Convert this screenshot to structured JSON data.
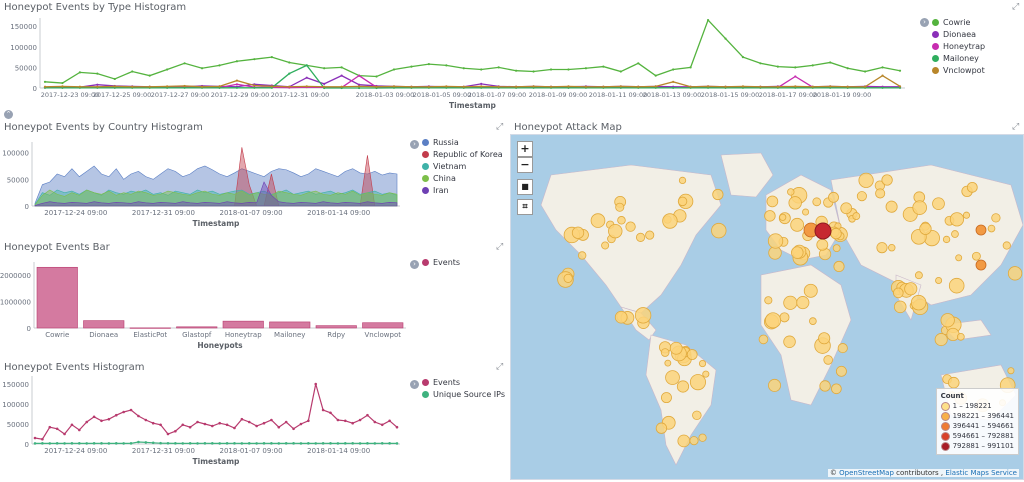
{
  "panels": {
    "type_histogram": {
      "title": "Honeypot Events by Type Histogram",
      "xlabel": "Timestamp",
      "yticks": [
        "150000",
        "100000",
        "50000",
        "0"
      ],
      "xticks": [
        "2017-12-23 09:00",
        "2017-12-25 09:00",
        "2017-12-27 09:00",
        "2017-12-29 09:00",
        "2017-12-31 09:00",
        "2018-01-03 09:00",
        "2018-01-05 09:00",
        "2018-01-07 09:00",
        "2018-01-09 09:00",
        "2018-01-11 09:00",
        "2018-01-13 09:00",
        "2018-01-15 09:00",
        "2018-01-17 09:00",
        "2018-01-19 09:00"
      ],
      "legend": [
        {
          "name": "Cowrie",
          "color": "#54b33e"
        },
        {
          "name": "Dionaea",
          "color": "#8a2fb8"
        },
        {
          "name": "Honeytrap",
          "color": "#c72cb0"
        },
        {
          "name": "Mailoney",
          "color": "#2fae5e"
        },
        {
          "name": "Vnclowpot",
          "color": "#b8862a"
        }
      ]
    },
    "country_histogram": {
      "title": "Honeypot Events by Country Histogram",
      "xlabel": "Timestamp",
      "yticks": [
        "100000",
        "50000",
        "0"
      ],
      "xticks": [
        "2017-12-24 09:00",
        "2017-12-31 09:00",
        "2018-01-07 09:00",
        "2018-01-14 09:00"
      ],
      "legend": [
        {
          "name": "Russia",
          "color": "#5b7fc4"
        },
        {
          "name": "Republic of Korea",
          "color": "#c23c4b"
        },
        {
          "name": "Vietnam",
          "color": "#3fb2a8"
        },
        {
          "name": "China",
          "color": "#7dbf4a"
        },
        {
          "name": "Iran",
          "color": "#6e40b3"
        }
      ]
    },
    "events_bar": {
      "title": "Honeypot Events Bar",
      "xlabel": "Honeypots",
      "yticks": [
        "2000000",
        "1000000",
        "0"
      ],
      "legend": [
        {
          "name": "Events",
          "color": "#b83b6e"
        }
      ]
    },
    "events_histogram": {
      "title": "Honeypot Events Histogram",
      "xlabel": "Timestamp",
      "yticks": [
        "150000",
        "100000",
        "50000",
        "0"
      ],
      "xticks": [
        "2017-12-24 09:00",
        "2017-12-31 09:00",
        "2018-01-07 09:00",
        "2018-01-14 09:00"
      ],
      "legend": [
        {
          "name": "Events",
          "color": "#b83b6e"
        },
        {
          "name": "Unique Source IPs",
          "color": "#3fb27f"
        }
      ]
    },
    "attack_map": {
      "title": "Honeypot Attack Map",
      "zoom_in": "+",
      "zoom_out": "−",
      "legend_title": "Count",
      "legend": [
        {
          "label": "1 – 198221",
          "color": "#fde08a"
        },
        {
          "label": "198221 – 396441",
          "color": "#f7b04a"
        },
        {
          "label": "396441 – 594661",
          "color": "#ee7b34"
        },
        {
          "label": "594661 – 792881",
          "color": "#d8412a"
        },
        {
          "label": "792881 – 991101",
          "color": "#a81c26"
        }
      ],
      "attribution_prefix": "©",
      "attribution_link1": "OpenStreetMap",
      "attribution_mid": "contributors ,",
      "attribution_link2": "Elastic Maps Service"
    }
  },
  "chart_data": [
    {
      "type": "line",
      "title": "Honeypot Events by Type Histogram",
      "xlabel": "Timestamp",
      "ylim": [
        0,
        170000
      ],
      "n_points": 50,
      "series": [
        {
          "name": "Cowrie",
          "color": "#54b33e",
          "values": [
            15000,
            12000,
            38000,
            35000,
            22000,
            40000,
            30000,
            45000,
            60000,
            48000,
            55000,
            65000,
            70000,
            75000,
            62000,
            55000,
            48000,
            50000,
            30000,
            28000,
            45000,
            52000,
            58000,
            55000,
            48000,
            45000,
            50000,
            42000,
            40000,
            45000,
            45000,
            48000,
            52000,
            40000,
            60000,
            30000,
            45000,
            50000,
            165000,
            120000,
            75000,
            60000,
            52000,
            50000,
            55000,
            62000,
            48000,
            40000,
            50000,
            42000
          ]
        },
        {
          "name": "Dionaea",
          "color": "#8a2fb8",
          "values": [
            2000,
            3000,
            2000,
            8000,
            5000,
            4000,
            3000,
            2000,
            3000,
            5000,
            4000,
            3000,
            9000,
            6000,
            3000,
            25000,
            10000,
            30000,
            8000,
            5000,
            4000,
            3000,
            4000,
            3000,
            3000,
            10000,
            4000,
            3000,
            4000,
            3000,
            3000,
            4000,
            3000,
            4000,
            3000,
            4000,
            3000,
            3000,
            4000,
            3000,
            3000,
            3000,
            4000,
            3000,
            3000,
            4000,
            3000,
            4000,
            3000,
            3000
          ]
        },
        {
          "name": "Honeytrap",
          "color": "#c72cb0",
          "values": [
            1000,
            1000,
            2000,
            1500,
            1000,
            2000,
            1500,
            1000,
            2000,
            1500,
            1000,
            9000,
            2000,
            1500,
            1000,
            2000,
            1500,
            1000,
            30000,
            2000,
            1500,
            1000,
            2000,
            1500,
            1000,
            2000,
            1500,
            1000,
            2000,
            1500,
            1000,
            2000,
            1500,
            1000,
            2000,
            1500,
            1000,
            2000,
            1500,
            1000,
            2000,
            1500,
            1000,
            28000,
            2000,
            1500,
            1000,
            2000,
            1500,
            1000
          ]
        },
        {
          "name": "Mailoney",
          "color": "#2fae5e",
          "values": [
            500,
            500,
            500,
            500,
            500,
            500,
            500,
            500,
            500,
            500,
            500,
            500,
            500,
            500,
            35000,
            55000,
            0,
            0,
            0,
            0,
            500,
            500,
            500,
            500,
            500,
            500,
            500,
            500,
            500,
            500,
            500,
            500,
            500,
            500,
            500,
            500,
            500,
            500,
            500,
            500,
            500,
            500,
            500,
            500,
            500,
            500,
            500,
            500,
            500,
            500
          ]
        },
        {
          "name": "Vnclowpot",
          "color": "#b8862a",
          "values": [
            3000,
            4000,
            3000,
            3000,
            4000,
            3000,
            3000,
            4000,
            5000,
            3000,
            4000,
            18000,
            6000,
            4000,
            3000,
            4000,
            3000,
            3000,
            4000,
            3000,
            4000,
            3000,
            3000,
            4000,
            3000,
            4000,
            3000,
            3000,
            4000,
            3000,
            4000,
            3000,
            3000,
            4000,
            3000,
            4000,
            15000,
            3000,
            4000,
            3000,
            4000,
            3000,
            3000,
            4000,
            3000,
            4000,
            3000,
            3000,
            30000,
            4000
          ]
        }
      ]
    },
    {
      "type": "area",
      "title": "Honeypot Events by Country Histogram",
      "xlabel": "Timestamp",
      "ylim": [
        0,
        120000
      ],
      "n_points": 50,
      "series": [
        {
          "name": "Russia",
          "color": "#5b7fc4",
          "values": [
            5000,
            40000,
            45000,
            60000,
            55000,
            70000,
            55000,
            65000,
            75000,
            60000,
            55000,
            70000,
            50000,
            60000,
            65000,
            55000,
            50000,
            60000,
            70000,
            65000,
            55000,
            60000,
            70000,
            75000,
            68000,
            60000,
            55000,
            62000,
            70000,
            65000,
            60000,
            55000,
            65000,
            70000,
            68000,
            62000,
            55000,
            60000,
            70000,
            65000,
            60000,
            55000,
            65000,
            70000,
            62000,
            60000,
            65000,
            58000,
            62000,
            60000
          ]
        },
        {
          "name": "Republic of Korea",
          "color": "#c23c4b",
          "values": [
            0,
            0,
            0,
            0,
            0,
            0,
            0,
            0,
            0,
            0,
            0,
            0,
            0,
            0,
            0,
            0,
            0,
            0,
            0,
            0,
            0,
            0,
            0,
            0,
            0,
            0,
            0,
            0,
            110000,
            40000,
            0,
            0,
            60000,
            0,
            0,
            0,
            0,
            0,
            0,
            0,
            0,
            0,
            0,
            0,
            0,
            95000,
            0,
            0,
            0,
            0
          ]
        },
        {
          "name": "Vietnam",
          "color": "#3fb2a8",
          "values": [
            3000,
            25000,
            20000,
            30000,
            25000,
            28000,
            22000,
            30000,
            25000,
            20000,
            30000,
            25000,
            22000,
            28000,
            25000,
            30000,
            22000,
            25000,
            20000,
            28000,
            25000,
            22000,
            30000,
            25000,
            28000,
            22000,
            25000,
            28000,
            30000,
            22000,
            25000,
            28000,
            22000,
            25000,
            30000,
            22000,
            25000,
            28000,
            22000,
            25000,
            28000,
            22000,
            25000,
            30000,
            22000,
            25000,
            28000,
            22000,
            25000,
            20000
          ]
        },
        {
          "name": "China",
          "color": "#7dbf4a",
          "values": [
            2000,
            20000,
            30000,
            22000,
            18000,
            25000,
            20000,
            30000,
            25000,
            22000,
            28000,
            20000,
            25000,
            22000,
            28000,
            25000,
            20000,
            22000,
            28000,
            25000,
            22000,
            20000,
            25000,
            28000,
            22000,
            20000,
            25000,
            22000,
            28000,
            20000,
            25000,
            22000,
            20000,
            28000,
            25000,
            22000,
            20000,
            25000,
            28000,
            22000,
            20000,
            25000,
            22000,
            28000,
            20000,
            25000,
            22000,
            20000,
            25000,
            22000
          ]
        },
        {
          "name": "Iran",
          "color": "#6e40b3",
          "values": [
            1000,
            5000,
            8000,
            6000,
            5000,
            7000,
            6000,
            5000,
            8000,
            6000,
            5000,
            7000,
            6000,
            5000,
            8000,
            6000,
            5000,
            7000,
            6000,
            5000,
            8000,
            6000,
            5000,
            7000,
            6000,
            5000,
            8000,
            6000,
            5000,
            7000,
            6000,
            45000,
            20000,
            8000,
            6000,
            5000,
            7000,
            6000,
            5000,
            8000,
            6000,
            5000,
            7000,
            6000,
            5000,
            8000,
            6000,
            5000,
            7000,
            6000
          ]
        }
      ]
    },
    {
      "type": "bar",
      "title": "Honeypot Events Bar",
      "xlabel": "Honeypots",
      "ylim": [
        0,
        2500000
      ],
      "categories": [
        "Cowrie",
        "Dionaea",
        "ElasticPot",
        "Glastopf",
        "Honeytrap",
        "Mailoney",
        "Rdpy",
        "Vnclowpot"
      ],
      "series": [
        {
          "name": "Events",
          "color": "#b83b6e",
          "values": [
            2300000,
            280000,
            5000,
            45000,
            260000,
            230000,
            90000,
            200000
          ]
        }
      ]
    },
    {
      "type": "line",
      "title": "Honeypot Events Histogram",
      "xlabel": "Timestamp",
      "ylim": [
        0,
        170000
      ],
      "n_points": 50,
      "series": [
        {
          "name": "Events",
          "color": "#b83b6e",
          "values": [
            15000,
            12000,
            42000,
            38000,
            25000,
            48000,
            35000,
            55000,
            68000,
            58000,
            62000,
            72000,
            80000,
            85000,
            70000,
            60000,
            52000,
            48000,
            25000,
            32000,
            48000,
            42000,
            55000,
            50000,
            45000,
            52000,
            48000,
            40000,
            62000,
            55000,
            45000,
            52000,
            60000,
            42000,
            55000,
            38000,
            50000,
            58000,
            150000,
            85000,
            78000,
            60000,
            58000,
            52000,
            60000,
            72000,
            55000,
            48000,
            58000,
            42000
          ]
        },
        {
          "name": "Unique Source IPs",
          "color": "#3fb27f",
          "values": [
            1500,
            1600,
            1500,
            1600,
            1500,
            1700,
            1600,
            1500,
            1600,
            1700,
            1500,
            1600,
            1500,
            1700,
            5000,
            4000,
            3000,
            2000,
            1800,
            1600,
            1500,
            1600,
            1500,
            1700,
            1600,
            1500,
            1600,
            1700,
            1500,
            1600,
            1500,
            1700,
            1600,
            1500,
            1600,
            1700,
            1500,
            1600,
            1500,
            1700,
            1600,
            1500,
            1600,
            1700,
            1500,
            1600,
            1500,
            1700,
            1600,
            1500
          ]
        }
      ]
    }
  ]
}
